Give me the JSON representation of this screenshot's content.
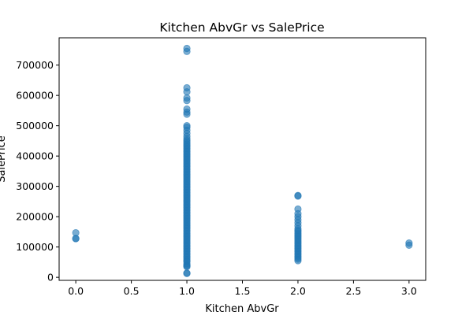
{
  "chart_data": {
    "type": "scatter",
    "title": "Kitchen AbvGr vs SalePrice",
    "xlabel": "Kitchen AbvGr",
    "ylabel": "SalePrice",
    "xlim": [
      -0.15,
      3.15
    ],
    "ylim": [
      -10000,
      790000
    ],
    "x_ticks": [
      0.0,
      0.5,
      1.0,
      1.5,
      2.0,
      2.5,
      3.0
    ],
    "x_tick_labels": [
      "0.0",
      "0.5",
      "1.0",
      "1.5",
      "2.0",
      "2.5",
      "3.0"
    ],
    "y_ticks": [
      0,
      100000,
      200000,
      300000,
      400000,
      500000,
      600000,
      700000
    ],
    "y_tick_labels": [
      "0",
      "100000",
      "200000",
      "300000",
      "400000",
      "500000",
      "600000",
      "700000"
    ],
    "grid": false,
    "point_color": "#1f77b4",
    "point_alpha": 0.6,
    "points": [
      {
        "x": 0,
        "y": 127500
      },
      {
        "x": 0,
        "y": 128000
      },
      {
        "x": 0,
        "y": 147000
      },
      {
        "x": 1,
        "y": 12789
      },
      {
        "x": 1,
        "y": 14000
      },
      {
        "x": 1,
        "y": 34900
      },
      {
        "x": 1,
        "y": 37900
      },
      {
        "x": 1,
        "y": 40000
      },
      {
        "x": 1,
        "y": 45000
      },
      {
        "x": 1,
        "y": 52000
      },
      {
        "x": 1,
        "y": 55000
      },
      {
        "x": 1,
        "y": 60000
      },
      {
        "x": 1,
        "y": 65000
      },
      {
        "x": 1,
        "y": 70000
      },
      {
        "x": 1,
        "y": 75000
      },
      {
        "x": 1,
        "y": 80000
      },
      {
        "x": 1,
        "y": 85000
      },
      {
        "x": 1,
        "y": 90000
      },
      {
        "x": 1,
        "y": 95000
      },
      {
        "x": 1,
        "y": 100000
      },
      {
        "x": 1,
        "y": 105000
      },
      {
        "x": 1,
        "y": 110000
      },
      {
        "x": 1,
        "y": 115000
      },
      {
        "x": 1,
        "y": 120000
      },
      {
        "x": 1,
        "y": 125000
      },
      {
        "x": 1,
        "y": 130000
      },
      {
        "x": 1,
        "y": 135000
      },
      {
        "x": 1,
        "y": 140000
      },
      {
        "x": 1,
        "y": 145000
      },
      {
        "x": 1,
        "y": 150000
      },
      {
        "x": 1,
        "y": 155000
      },
      {
        "x": 1,
        "y": 160000
      },
      {
        "x": 1,
        "y": 165000
      },
      {
        "x": 1,
        "y": 170000
      },
      {
        "x": 1,
        "y": 175000
      },
      {
        "x": 1,
        "y": 180000
      },
      {
        "x": 1,
        "y": 185000
      },
      {
        "x": 1,
        "y": 190000
      },
      {
        "x": 1,
        "y": 195000
      },
      {
        "x": 1,
        "y": 200000
      },
      {
        "x": 1,
        "y": 205000
      },
      {
        "x": 1,
        "y": 210000
      },
      {
        "x": 1,
        "y": 215000
      },
      {
        "x": 1,
        "y": 220000
      },
      {
        "x": 1,
        "y": 225000
      },
      {
        "x": 1,
        "y": 230000
      },
      {
        "x": 1,
        "y": 235000
      },
      {
        "x": 1,
        "y": 240000
      },
      {
        "x": 1,
        "y": 245000
      },
      {
        "x": 1,
        "y": 250000
      },
      {
        "x": 1,
        "y": 255000
      },
      {
        "x": 1,
        "y": 260000
      },
      {
        "x": 1,
        "y": 265000
      },
      {
        "x": 1,
        "y": 270000
      },
      {
        "x": 1,
        "y": 275000
      },
      {
        "x": 1,
        "y": 280000
      },
      {
        "x": 1,
        "y": 285000
      },
      {
        "x": 1,
        "y": 290000
      },
      {
        "x": 1,
        "y": 295000
      },
      {
        "x": 1,
        "y": 300000
      },
      {
        "x": 1,
        "y": 305000
      },
      {
        "x": 1,
        "y": 310000
      },
      {
        "x": 1,
        "y": 315000
      },
      {
        "x": 1,
        "y": 320000
      },
      {
        "x": 1,
        "y": 325000
      },
      {
        "x": 1,
        "y": 330000
      },
      {
        "x": 1,
        "y": 335000
      },
      {
        "x": 1,
        "y": 340000
      },
      {
        "x": 1,
        "y": 345000
      },
      {
        "x": 1,
        "y": 350000
      },
      {
        "x": 1,
        "y": 355000
      },
      {
        "x": 1,
        "y": 360000
      },
      {
        "x": 1,
        "y": 365000
      },
      {
        "x": 1,
        "y": 370000
      },
      {
        "x": 1,
        "y": 375000
      },
      {
        "x": 1,
        "y": 380000
      },
      {
        "x": 1,
        "y": 385000
      },
      {
        "x": 1,
        "y": 390000
      },
      {
        "x": 1,
        "y": 395000
      },
      {
        "x": 1,
        "y": 400000
      },
      {
        "x": 1,
        "y": 405000
      },
      {
        "x": 1,
        "y": 410000
      },
      {
        "x": 1,
        "y": 415000
      },
      {
        "x": 1,
        "y": 420000
      },
      {
        "x": 1,
        "y": 425000
      },
      {
        "x": 1,
        "y": 430000
      },
      {
        "x": 1,
        "y": 435000
      },
      {
        "x": 1,
        "y": 440000
      },
      {
        "x": 1,
        "y": 446000
      },
      {
        "x": 1,
        "y": 451000
      },
      {
        "x": 1,
        "y": 457000
      },
      {
        "x": 1,
        "y": 465000
      },
      {
        "x": 1,
        "y": 475000
      },
      {
        "x": 1,
        "y": 485000
      },
      {
        "x": 1,
        "y": 495000
      },
      {
        "x": 1,
        "y": 500000
      },
      {
        "x": 1,
        "y": 538000
      },
      {
        "x": 1,
        "y": 545000
      },
      {
        "x": 1,
        "y": 555000
      },
      {
        "x": 1,
        "y": 582933
      },
      {
        "x": 1,
        "y": 591587
      },
      {
        "x": 1,
        "y": 611657
      },
      {
        "x": 1,
        "y": 625000
      },
      {
        "x": 1,
        "y": 745000
      },
      {
        "x": 1,
        "y": 755000
      },
      {
        "x": 2,
        "y": 55000
      },
      {
        "x": 2,
        "y": 60000
      },
      {
        "x": 2,
        "y": 65000
      },
      {
        "x": 2,
        "y": 70000
      },
      {
        "x": 2,
        "y": 75000
      },
      {
        "x": 2,
        "y": 80000
      },
      {
        "x": 2,
        "y": 85000
      },
      {
        "x": 2,
        "y": 90000
      },
      {
        "x": 2,
        "y": 95000
      },
      {
        "x": 2,
        "y": 100000
      },
      {
        "x": 2,
        "y": 105000
      },
      {
        "x": 2,
        "y": 110000
      },
      {
        "x": 2,
        "y": 115000
      },
      {
        "x": 2,
        "y": 120000
      },
      {
        "x": 2,
        "y": 125000
      },
      {
        "x": 2,
        "y": 130000
      },
      {
        "x": 2,
        "y": 135000
      },
      {
        "x": 2,
        "y": 140000
      },
      {
        "x": 2,
        "y": 145000
      },
      {
        "x": 2,
        "y": 150000
      },
      {
        "x": 2,
        "y": 155000
      },
      {
        "x": 2,
        "y": 160000
      },
      {
        "x": 2,
        "y": 170000
      },
      {
        "x": 2,
        "y": 180000
      },
      {
        "x": 2,
        "y": 190000
      },
      {
        "x": 2,
        "y": 200000
      },
      {
        "x": 2,
        "y": 210000
      },
      {
        "x": 2,
        "y": 225000
      },
      {
        "x": 2,
        "y": 268000
      },
      {
        "x": 2,
        "y": 270000
      },
      {
        "x": 3,
        "y": 106000
      },
      {
        "x": 3,
        "y": 113000
      }
    ]
  }
}
